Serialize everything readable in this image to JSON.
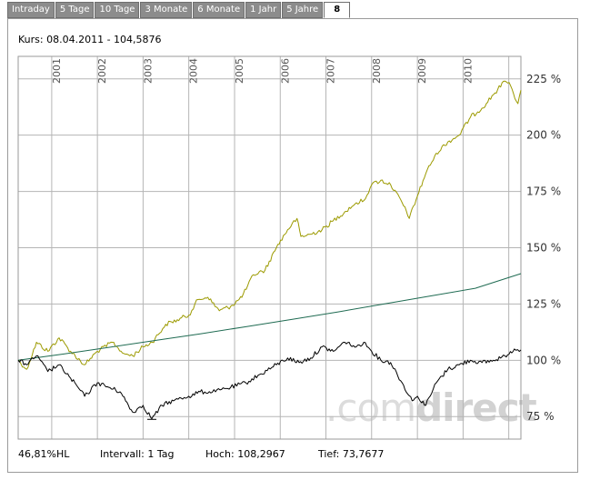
{
  "tabs": [
    "Intraday",
    "5 Tage",
    "10 Tage",
    "3 Monate",
    "6 Monate",
    "1 Jahr",
    "5 Jahre",
    "8"
  ],
  "active_tab": 7,
  "kurs_label": "Kurs: 08.04.2011 - 104,5876",
  "footer": {
    "hl": "46,81%HL",
    "intervall": "Intervall: 1 Tag",
    "hoch": "Hoch: 108,2967",
    "tief": "Tief: 73,7677"
  },
  "watermark": {
    "light": ".com",
    "bold": "direct"
  },
  "colors": {
    "gold": "#9c9a00",
    "green": "#1f6b52",
    "black": "#000000",
    "grid": "#b5b5b5"
  },
  "chart_data": {
    "type": "line",
    "x_range": [
      "2000-04-08",
      "2011-04-08"
    ],
    "ylim": [
      65,
      235
    ],
    "yticks": [
      75,
      100,
      125,
      150,
      175,
      200,
      225
    ],
    "ytick_labels": [
      "75 %",
      "100 %",
      "125 %",
      "150 %",
      "175 %",
      "200 %",
      "225 %"
    ],
    "xticks": [
      "2001-01-01",
      "2002-01-01",
      "2003-01-01",
      "2004-01-01",
      "2005-01-01",
      "2006-01-01",
      "2007-01-01",
      "2008-01-01",
      "2009-01-01",
      "2010-01-01",
      "2011-01-01"
    ],
    "xtick_labels": [
      "2001",
      "2002",
      "2003",
      "2004",
      "2005",
      "2006",
      "2007",
      "2008",
      "2009",
      "2010",
      ""
    ],
    "grid": true,
    "series": [
      {
        "color": "#9c9a00",
        "x": [
          "2000-04-08",
          "2000-06-15",
          "2000-09-01",
          "2000-12-01",
          "2001-03-01",
          "2001-06-01",
          "2001-09-20",
          "2002-01-01",
          "2002-05-01",
          "2002-08-01",
          "2002-10-10",
          "2003-01-01",
          "2003-03-15",
          "2003-07-01",
          "2003-10-01",
          "2004-01-01",
          "2004-03-15",
          "2004-06-01",
          "2004-09-01",
          "2004-12-01",
          "2005-03-01",
          "2005-06-01",
          "2005-09-01",
          "2005-12-01",
          "2006-03-01",
          "2006-05-15",
          "2006-06-15",
          "2006-09-01",
          "2006-12-01",
          "2007-03-01",
          "2007-06-01",
          "2007-09-01",
          "2007-11-01",
          "2008-01-01",
          "2008-03-15",
          "2008-06-01",
          "2008-09-01",
          "2008-10-28",
          "2009-01-01",
          "2009-03-09",
          "2009-06-01",
          "2009-09-01",
          "2009-12-01",
          "2010-03-01",
          "2010-06-01",
          "2010-09-01",
          "2010-12-01",
          "2011-01-15",
          "2011-03-15",
          "2011-04-08"
        ],
        "values": [
          100,
          96,
          108,
          104,
          110,
          104,
          98,
          104,
          108,
          103,
          102,
          106,
          108,
          116,
          118,
          120,
          127,
          128,
          122,
          124,
          128,
          138,
          140,
          150,
          158,
          163,
          155,
          156,
          158,
          162,
          166,
          170,
          171,
          178,
          180,
          178,
          170,
          163,
          173,
          183,
          192,
          197,
          200,
          208,
          212,
          218,
          224,
          222,
          214,
          220
        ]
      },
      {
        "color": "#1f6b52",
        "x": [
          "2000-04-08",
          "2001-04-08",
          "2002-04-08",
          "2003-04-08",
          "2004-04-08",
          "2005-04-08",
          "2006-04-08",
          "2007-04-08",
          "2008-04-08",
          "2009-04-08",
          "2010-04-08",
          "2011-04-08"
        ],
        "values": [
          100,
          102.8,
          105.8,
          108.8,
          111.8,
          115.0,
          118.2,
          121.5,
          125.0,
          128.5,
          132.0,
          138.5
        ]
      },
      {
        "color": "#000000",
        "x": [
          "2000-04-08",
          "2000-06-15",
          "2000-09-01",
          "2000-12-01",
          "2001-03-01",
          "2001-06-01",
          "2001-09-21",
          "2002-01-01",
          "2002-04-01",
          "2002-07-01",
          "2002-10-09",
          "2003-01-01",
          "2003-03-12",
          "2003-06-01",
          "2003-09-01",
          "2004-01-01",
          "2004-04-01",
          "2004-08-01",
          "2004-12-01",
          "2005-04-01",
          "2005-08-01",
          "2005-12-01",
          "2006-03-01",
          "2006-06-01",
          "2006-09-01",
          "2006-12-01",
          "2007-03-01",
          "2007-06-01",
          "2007-09-01",
          "2007-10-31",
          "2008-01-01",
          "2008-03-15",
          "2008-06-01",
          "2008-09-01",
          "2008-11-20",
          "2009-01-01",
          "2009-03-09",
          "2009-06-01",
          "2009-09-01",
          "2009-12-01",
          "2010-03-01",
          "2010-06-01",
          "2010-09-01",
          "2010-12-01",
          "2011-02-15",
          "2011-04-08"
        ],
        "values": [
          100,
          98,
          102,
          95,
          98,
          92,
          84,
          90,
          88,
          86,
          77,
          80,
          74,
          80,
          82,
          84,
          86,
          86,
          88,
          90,
          94,
          98,
          101,
          99,
          101,
          106,
          104,
          108,
          106,
          108,
          104,
          100,
          99,
          90,
          82,
          84,
          80,
          90,
          96,
          98,
          100,
          99,
          100,
          102,
          105,
          104.6
        ]
      }
    ],
    "annotations": [
      "46,81%HL"
    ]
  }
}
